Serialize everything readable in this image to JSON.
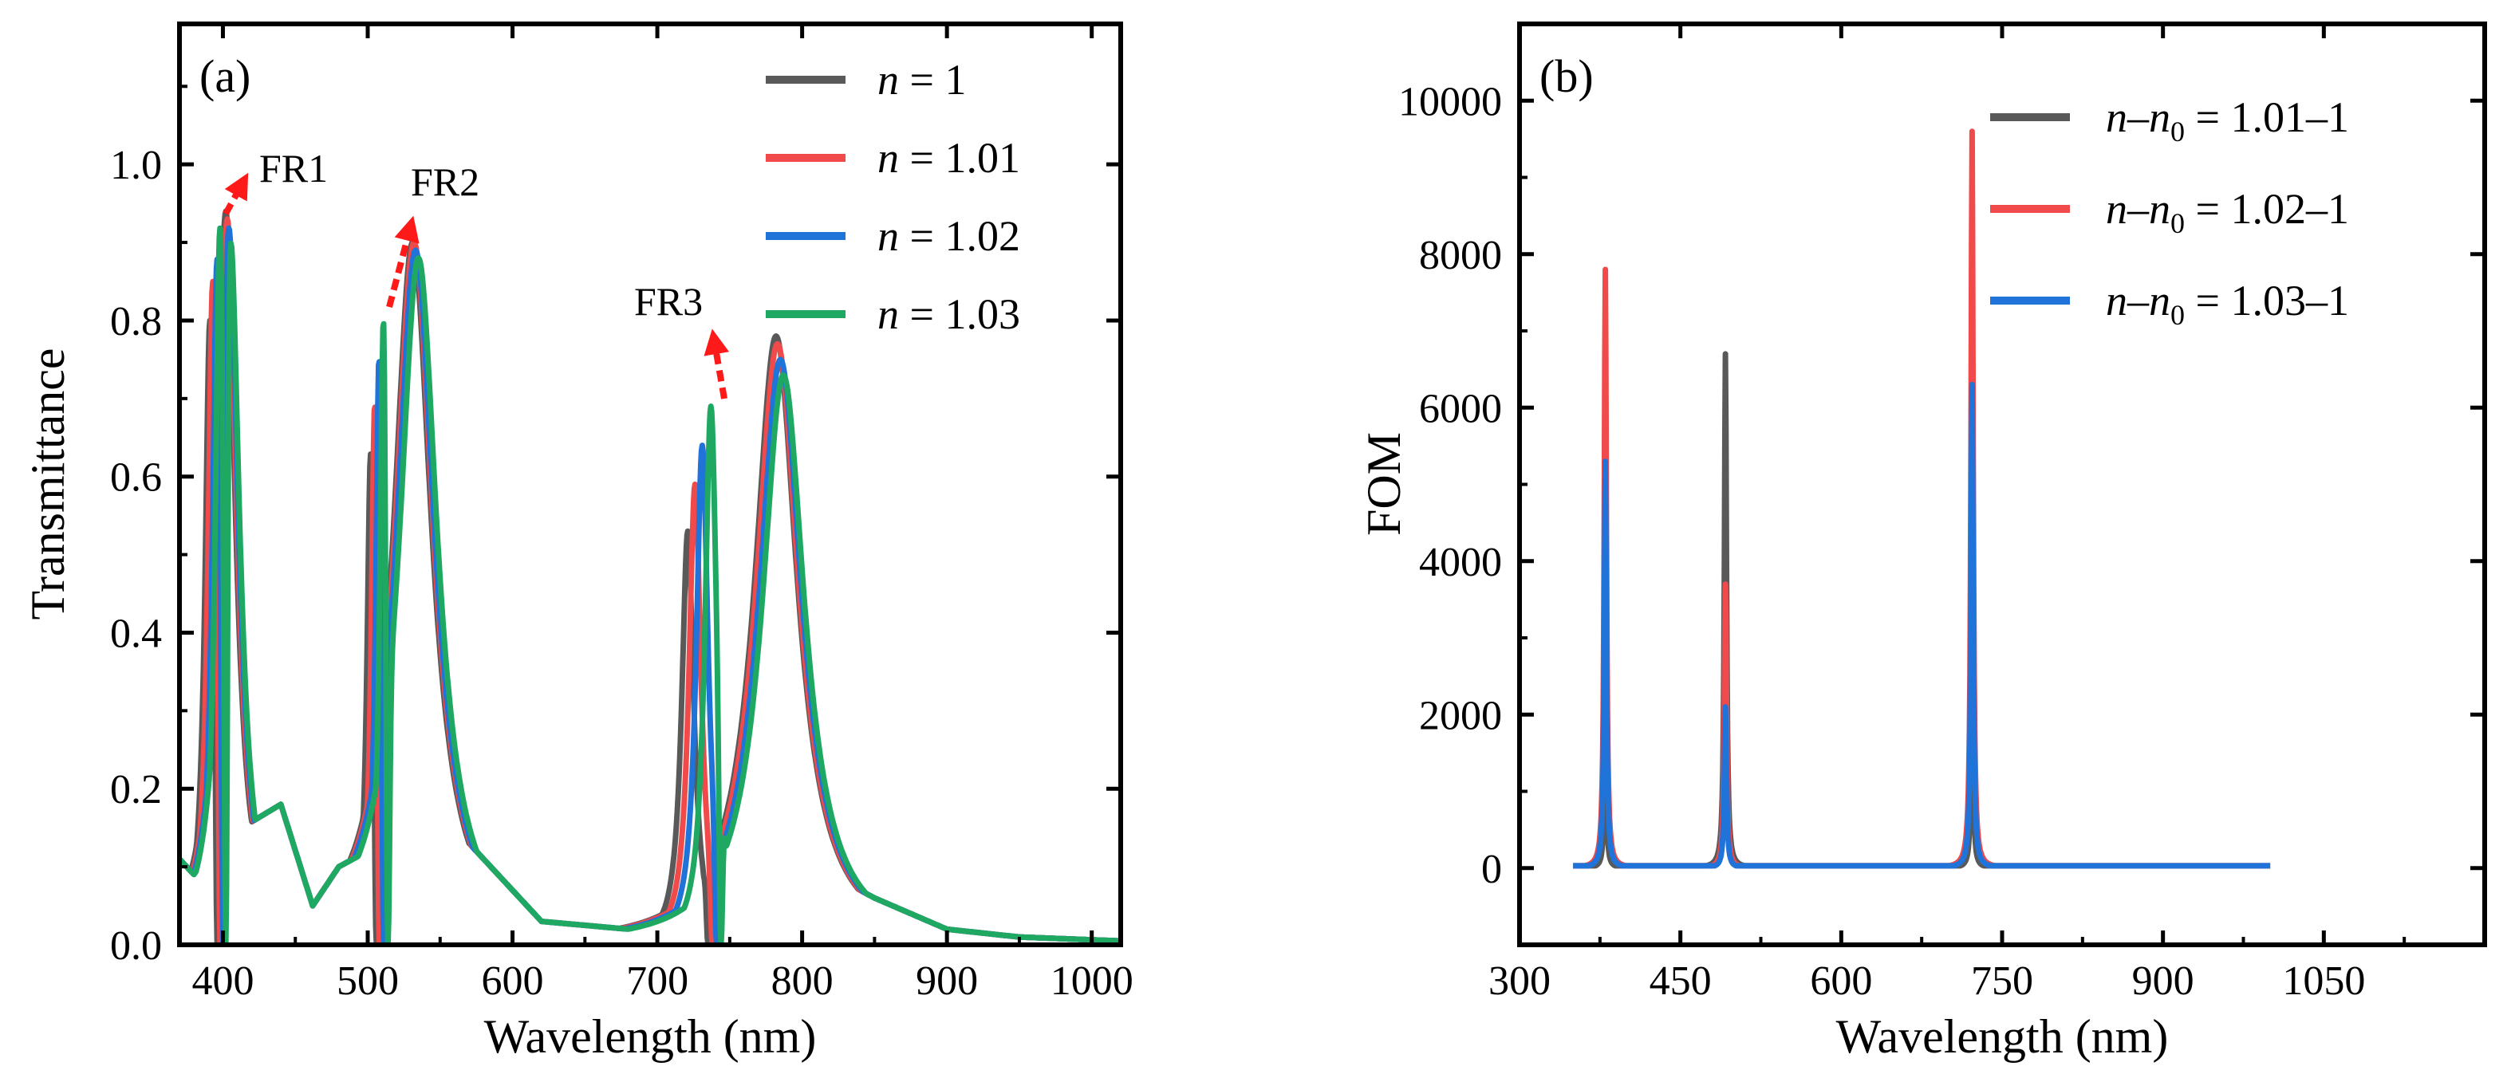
{
  "chart_data": [
    {
      "type": "line",
      "panel_label": "(a)",
      "xlabel": "Wavelength (nm)",
      "ylabel": "Transmittance",
      "xlim": [
        370,
        1020
      ],
      "ylim": [
        0.0,
        1.18
      ],
      "xticks": [
        "400",
        "500",
        "600",
        "700",
        "800",
        "900",
        "1000"
      ],
      "yticks": [
        "0.0",
        "0.2",
        "0.4",
        "0.6",
        "0.8",
        "1.0"
      ],
      "legend": [
        {
          "var": "n",
          "rest": " = 1",
          "color": "#595959"
        },
        {
          "var": "n",
          "rest": " = 1.01",
          "color": "#f04a4a"
        },
        {
          "var": "n",
          "rest": " = 1.02",
          "color": "#1f73d9"
        },
        {
          "var": "n",
          "rest": " = 1.03",
          "color": "#1ea862"
        }
      ],
      "annotations": [
        "FR1",
        "FR2",
        "FR3"
      ],
      "baseline": {
        "x": [
          370,
          380,
          395,
          440,
          462,
          480,
          510,
          560,
          620,
          680,
          720,
          760,
          800,
          850,
          900,
          950,
          1020
        ],
        "y": [
          0.11,
          0.09,
          0.13,
          0.18,
          0.05,
          0.1,
          0.13,
          0.15,
          0.03,
          0.02,
          0.03,
          0.12,
          0.11,
          0.06,
          0.02,
          0.01,
          0.005
        ]
      },
      "series": [
        {
          "name": "n = 1",
          "color": "#595959",
          "peaks": [
            [
              391,
              0.8,
              4
            ],
            [
              402,
              0.94,
              8
            ],
            [
              502,
              0.63,
              3
            ],
            [
              531,
              0.9,
              16
            ],
            [
              721,
              0.53,
              5
            ],
            [
              782,
              0.78,
              18
            ]
          ],
          "dips": [
            396,
            506,
            735
          ]
        },
        {
          "name": "n = 1.01",
          "color": "#f04a4a",
          "peaks": [
            [
              393,
              0.85,
              4
            ],
            [
              403,
              0.93,
              8
            ],
            [
              505,
              0.71,
              3
            ],
            [
              532,
              0.9,
              16
            ],
            [
              726,
              0.59,
              5
            ],
            [
              783,
              0.77,
              18
            ]
          ],
          "dips": [
            398,
            508,
            738
          ]
        },
        {
          "name": "n = 1.02",
          "color": "#1f73d9",
          "peaks": [
            [
              396,
              0.88,
              4
            ],
            [
              404,
              0.92,
              8
            ],
            [
              508,
              0.77,
              3
            ],
            [
              533,
              0.89,
              16
            ],
            [
              731,
              0.64,
              5
            ],
            [
              785,
              0.75,
              18
            ]
          ],
          "dips": [
            400,
            511,
            741
          ]
        },
        {
          "name": "n = 1.03",
          "color": "#1ea862",
          "peaks": [
            [
              398,
              0.92,
              4
            ],
            [
              405,
              0.91,
              8
            ],
            [
              511,
              0.82,
              3
            ],
            [
              535,
              0.88,
              16
            ],
            [
              737,
              0.69,
              5
            ],
            [
              787,
              0.73,
              18
            ]
          ],
          "dips": [
            402,
            514,
            744
          ]
        }
      ]
    },
    {
      "type": "line",
      "panel_label": "(b)",
      "xlabel": "Wavelength (nm)",
      "ylabel": "FOM",
      "xlim": [
        300,
        1200
      ],
      "ylim": [
        -1000,
        11000
      ],
      "xticks": [
        "300",
        "450",
        "600",
        "750",
        "900",
        "1050"
      ],
      "yticks": [
        "0",
        "2000",
        "4000",
        "6000",
        "8000",
        "10000"
      ],
      "x_range": [
        350,
        1000
      ],
      "legend": [
        {
          "var": "n",
          "sub": "0",
          "rest": " = 1.01–1",
          "color": "#595959"
        },
        {
          "var": "n",
          "sub": "0",
          "rest": " = 1.02–1",
          "color": "#f04a4a"
        },
        {
          "var": "n",
          "sub": "0",
          "rest": " = 1.03–1",
          "color": "#1f73d9"
        }
      ],
      "series": [
        {
          "name": "n–n0 = 1.01–1",
          "color": "#595959",
          "peaks": [
            [
              380,
              1800
            ],
            [
              492,
              6700
            ],
            [
              722,
              2500
            ]
          ]
        },
        {
          "name": "n–n0 = 1.02–1",
          "color": "#f04a4a",
          "peaks": [
            [
              380,
              7800
            ],
            [
              492,
              3700
            ],
            [
              722,
              9600
            ]
          ]
        },
        {
          "name": "n–n0 = 1.03–1",
          "color": "#1f73d9",
          "peaks": [
            [
              380,
              5300
            ],
            [
              492,
              2100
            ],
            [
              722,
              6300
            ]
          ]
        }
      ]
    }
  ]
}
